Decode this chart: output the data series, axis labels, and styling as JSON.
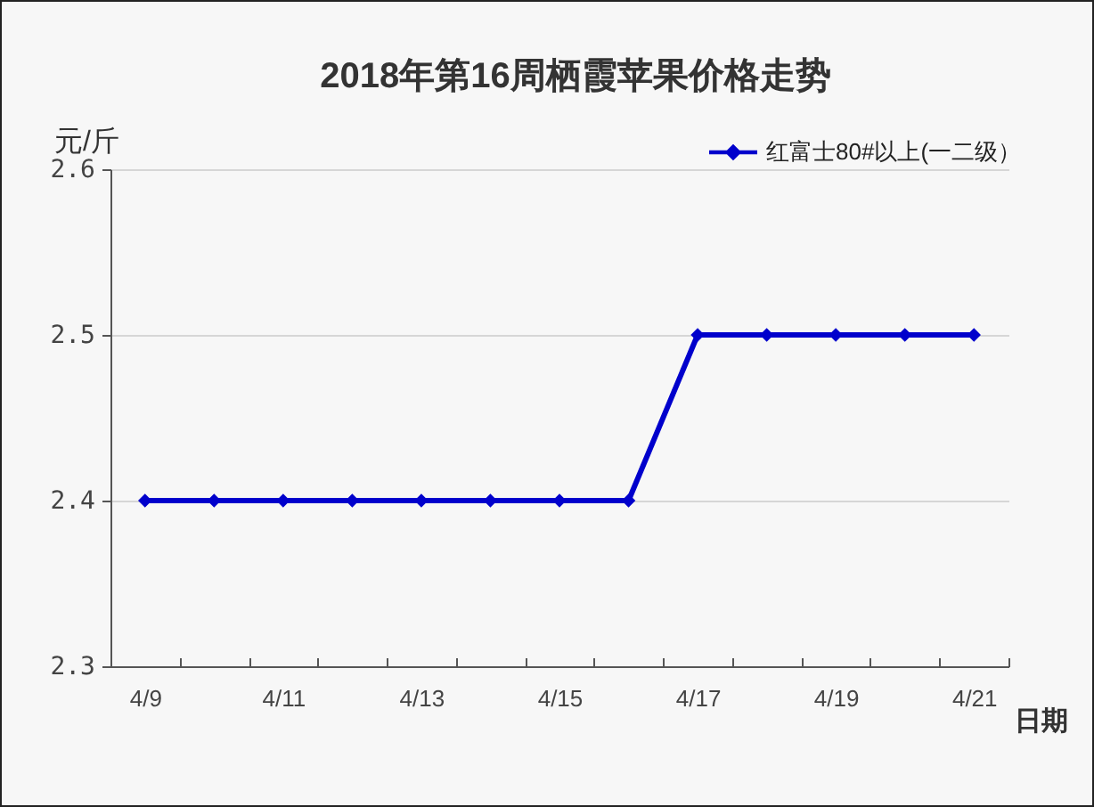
{
  "chart_data": {
    "type": "line",
    "title": "2018年第16周栖霞苹果价格走势",
    "xlabel": "日期",
    "ylabel": "元/斤",
    "categories": [
      "4/9",
      null,
      "4/11",
      null,
      "4/13",
      null,
      "4/15",
      null,
      "4/17",
      null,
      "4/19",
      null,
      "4/21"
    ],
    "series": [
      {
        "name": "红富士80#以上(一二级）",
        "color": "#0000cc",
        "values": [
          2.4,
          2.4,
          2.4,
          2.4,
          2.4,
          2.4,
          2.4,
          2.4,
          2.5,
          2.5,
          2.5,
          2.5,
          2.5
        ]
      }
    ],
    "ylim": [
      2.3,
      2.6
    ],
    "yticks": [
      2.3,
      2.4,
      2.5,
      2.6
    ],
    "grid": "y",
    "legend": "top right",
    "marker": "diamond"
  }
}
